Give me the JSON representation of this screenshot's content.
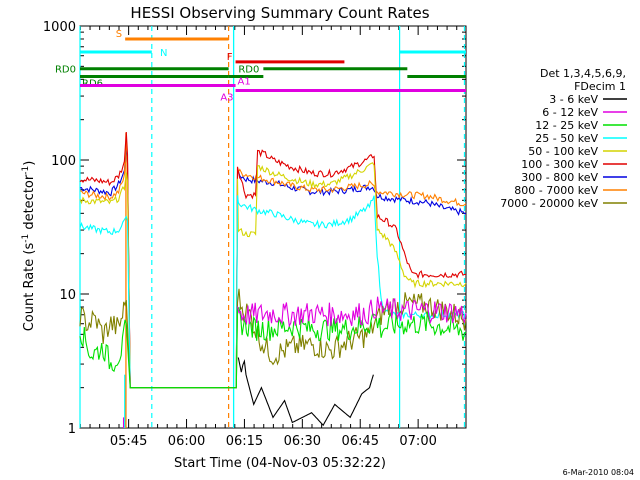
{
  "chart_data": {
    "type": "line",
    "title": "HESSI Observing Summary Count Rates",
    "xlabel": "Start Time (04-Nov-03 05:32:22)",
    "ylabel_main": "Count Rate (s",
    "ylabel_sup1": "-1",
    "ylabel_mid": " detector",
    "ylabel_sup2": "-1",
    "ylabel_end": ")",
    "x_unit": "minutes after 05:32:22",
    "xlim": [
      0,
      100
    ],
    "ylim": [
      1,
      1000
    ],
    "yscale": "log",
    "x_ticks": [
      {
        "label": "05:45",
        "x": 12.6
      },
      {
        "label": "06:00",
        "x": 27.6
      },
      {
        "label": "06:15",
        "x": 42.6
      },
      {
        "label": "06:30",
        "x": 57.6
      },
      {
        "label": "06:45",
        "x": 72.6
      },
      {
        "label": "07:00",
        "x": 87.6
      }
    ],
    "y_ticks": [
      {
        "label": "1",
        "y": 1
      },
      {
        "label": "10",
        "y": 10
      },
      {
        "label": "100",
        "y": 100
      },
      {
        "label": "1000",
        "y": 1000
      }
    ],
    "legend_header": [
      "Det 1,3,4,5,6,9,",
      "FDecim 1"
    ],
    "series": [
      {
        "name": "3 - 6 keV",
        "color": "#000000"
      },
      {
        "name": "6 - 12 keV",
        "color": "#e000e0"
      },
      {
        "name": "12 - 25 keV",
        "color": "#00e000"
      },
      {
        "name": "25 - 50 keV",
        "color": "#00ffff"
      },
      {
        "name": "50 - 100 keV",
        "color": "#d4d400"
      },
      {
        "name": "100 - 300 keV",
        "color": "#e00000"
      },
      {
        "name": "300 - 800 keV",
        "color": "#0000e0"
      },
      {
        "name": "800 - 7000 keV",
        "color": "#ff8000"
      },
      {
        "name": "7000 - 20000 keV",
        "color": "#808000"
      }
    ],
    "curves": [
      {
        "series": 6,
        "points": [
          [
            0,
            62
          ],
          [
            5,
            59
          ],
          [
            8,
            57
          ],
          [
            10,
            66
          ],
          [
            11.5,
            82
          ],
          [
            12,
            130
          ],
          [
            12.3,
            95
          ],
          [
            13,
            2
          ],
          [
            40.5,
            2
          ],
          [
            40.8,
            82
          ],
          [
            41,
            78
          ],
          [
            43,
            72
          ],
          [
            46,
            70
          ],
          [
            50,
            68
          ],
          [
            55,
            62
          ],
          [
            60,
            58
          ],
          [
            65,
            58
          ],
          [
            70,
            60
          ],
          [
            75,
            63
          ],
          [
            76.2,
            62
          ],
          [
            77,
            54
          ],
          [
            80,
            52
          ],
          [
            85,
            50
          ],
          [
            90,
            48
          ],
          [
            95,
            43
          ],
          [
            100,
            40
          ]
        ]
      },
      {
        "series": 7,
        "points": [
          [
            0,
            57
          ],
          [
            5,
            54
          ],
          [
            8,
            53
          ],
          [
            10,
            58
          ],
          [
            11.5,
            75
          ],
          [
            12,
            150
          ],
          [
            12.3,
            95
          ],
          [
            13,
            2
          ],
          [
            40.5,
            2
          ],
          [
            40.8,
            88
          ],
          [
            41,
            82
          ],
          [
            43,
            78
          ],
          [
            46,
            74
          ],
          [
            50,
            70
          ],
          [
            55,
            64
          ],
          [
            60,
            60
          ],
          [
            65,
            60
          ],
          [
            70,
            63
          ],
          [
            75,
            66
          ],
          [
            76.2,
            64
          ],
          [
            77,
            58
          ],
          [
            80,
            57
          ],
          [
            85,
            55
          ],
          [
            90,
            54
          ],
          [
            95,
            50
          ],
          [
            100,
            47
          ]
        ]
      },
      {
        "series": 5,
        "points": [
          [
            0,
            72
          ],
          [
            5,
            70
          ],
          [
            8,
            68
          ],
          [
            10,
            76
          ],
          [
            11.5,
            95
          ],
          [
            12,
            170
          ],
          [
            12.3,
            110
          ],
          [
            13,
            2
          ],
          [
            40.5,
            2
          ],
          [
            40.8,
            90
          ],
          [
            41,
            85
          ],
          [
            42.5,
            60
          ],
          [
            43,
            55
          ],
          [
            45.5,
            55
          ],
          [
            46,
            115
          ],
          [
            48,
            110
          ],
          [
            50,
            100
          ],
          [
            55,
            88
          ],
          [
            60,
            80
          ],
          [
            65,
            79
          ],
          [
            70,
            88
          ],
          [
            75,
            102
          ],
          [
            76.2,
            110
          ],
          [
            77,
            38
          ],
          [
            80,
            34
          ],
          [
            82,
            30
          ],
          [
            84,
            20
          ],
          [
            86,
            14
          ],
          [
            90,
            14
          ],
          [
            95,
            14
          ],
          [
            100,
            14
          ]
        ]
      },
      {
        "series": 4,
        "points": [
          [
            0,
            50
          ],
          [
            5,
            49
          ],
          [
            8,
            48
          ],
          [
            10,
            52
          ],
          [
            11.5,
            62
          ],
          [
            12,
            85
          ],
          [
            12.3,
            70
          ],
          [
            13,
            2
          ],
          [
            40.5,
            2
          ],
          [
            40.8,
            70
          ],
          [
            41,
            30
          ],
          [
            43,
            28
          ],
          [
            45.5,
            28
          ],
          [
            46,
            90
          ],
          [
            48,
            85
          ],
          [
            50,
            80
          ],
          [
            55,
            72
          ],
          [
            60,
            66
          ],
          [
            65,
            66
          ],
          [
            70,
            76
          ],
          [
            75,
            90
          ],
          [
            76.2,
            95
          ],
          [
            77,
            30
          ],
          [
            80,
            25
          ],
          [
            82,
            20
          ],
          [
            84,
            14
          ],
          [
            86,
            12
          ],
          [
            90,
            12
          ],
          [
            95,
            12
          ],
          [
            100,
            12
          ]
        ]
      },
      {
        "series": 3,
        "points": [
          [
            0,
            32
          ],
          [
            5,
            30
          ],
          [
            8,
            29
          ],
          [
            10,
            30
          ],
          [
            11.5,
            34
          ],
          [
            12,
            40
          ],
          [
            12.3,
            35
          ],
          [
            13,
            2
          ],
          [
            40.5,
            2
          ],
          [
            40.8,
            55
          ],
          [
            41,
            48
          ],
          [
            43,
            45
          ],
          [
            46,
            42
          ],
          [
            50,
            40
          ],
          [
            55,
            36
          ],
          [
            60,
            33
          ],
          [
            65,
            33
          ],
          [
            70,
            36
          ],
          [
            75,
            45
          ],
          [
            76.2,
            52
          ],
          [
            77,
            20
          ],
          [
            78,
            9
          ],
          [
            80,
            7
          ],
          [
            85,
            7
          ],
          [
            90,
            7
          ],
          [
            95,
            7
          ],
          [
            100,
            7
          ]
        ]
      },
      {
        "series": 8,
        "points": [
          [
            0,
            7
          ],
          [
            2,
            6
          ],
          [
            4,
            6.5
          ],
          [
            6,
            5
          ],
          [
            8,
            6
          ],
          [
            10,
            5.5
          ],
          [
            11,
            7
          ],
          [
            12,
            9
          ],
          [
            13,
            2
          ],
          [
            40.5,
            2
          ],
          [
            40.8,
            10
          ],
          [
            42,
            8
          ],
          [
            44,
            7
          ],
          [
            46,
            5
          ],
          [
            48,
            4
          ],
          [
            50,
            3.5
          ],
          [
            55,
            4
          ],
          [
            60,
            4.2
          ],
          [
            65,
            3.8
          ],
          [
            70,
            4.5
          ],
          [
            75,
            5
          ],
          [
            76.2,
            6
          ],
          [
            78,
            7
          ],
          [
            80,
            8
          ],
          [
            85,
            8.5
          ],
          [
            90,
            8.2
          ],
          [
            95,
            7.5
          ],
          [
            100,
            6.5
          ]
        ]
      },
      {
        "series": 2,
        "points": [
          [
            0,
            5.5
          ],
          [
            3,
            3.5
          ],
          [
            6,
            4
          ],
          [
            8,
            3
          ],
          [
            10,
            3.5
          ],
          [
            11,
            4
          ],
          [
            12,
            6
          ],
          [
            13,
            2
          ],
          [
            40.5,
            2
          ],
          [
            40.8,
            7
          ],
          [
            42,
            6
          ],
          [
            45,
            5.5
          ],
          [
            50,
            5.5
          ],
          [
            55,
            5.8
          ],
          [
            60,
            5.5
          ],
          [
            65,
            5.5
          ],
          [
            70,
            5.5
          ],
          [
            75,
            6
          ],
          [
            76.2,
            7
          ],
          [
            78,
            5.5
          ],
          [
            80,
            5.8
          ],
          [
            85,
            6
          ],
          [
            90,
            6
          ],
          [
            95,
            5.6
          ],
          [
            100,
            5.2
          ]
        ]
      },
      {
        "series": 1,
        "points": [
          [
            40.8,
            8
          ],
          [
            42,
            7
          ],
          [
            45,
            7
          ],
          [
            50,
            7.2
          ],
          [
            55,
            7
          ],
          [
            60,
            7.2
          ],
          [
            65,
            7
          ],
          [
            70,
            7.1
          ],
          [
            75,
            7.2
          ],
          [
            76.2,
            8
          ],
          [
            78,
            7.8
          ],
          [
            80,
            7.6
          ],
          [
            85,
            7.5
          ],
          [
            90,
            7.6
          ],
          [
            95,
            7.4
          ],
          [
            100,
            7.2
          ]
        ]
      },
      {
        "series": 0,
        "points": [
          [
            41,
            3
          ],
          [
            43,
            2.5
          ],
          [
            45,
            1.5
          ],
          [
            47,
            2
          ],
          [
            50,
            1.2
          ],
          [
            53,
            1.6
          ],
          [
            55,
            1.1
          ],
          [
            60,
            1.3
          ],
          [
            63,
            1.05
          ],
          [
            66,
            1.5
          ],
          [
            70,
            1.2
          ],
          [
            73,
            1.8
          ],
          [
            75,
            2
          ],
          [
            76,
            2.5
          ]
        ]
      }
    ],
    "spikes": [
      {
        "series": 1,
        "x": 11.3,
        "from": 1,
        "to": 1.2
      },
      {
        "series": 3,
        "x": 11.6,
        "from": 1,
        "to": 2.5
      },
      {
        "series": 7,
        "x": 11.9,
        "from": 1,
        "to": 160
      },
      {
        "series": 3,
        "x": 39.8,
        "from": 1,
        "to": 1000
      }
    ],
    "vlines": [
      {
        "x": 0,
        "color": "#00ffff",
        "dash": false
      },
      {
        "x": 18.6,
        "color": "#00ffff",
        "dash": true
      },
      {
        "x": 38.5,
        "color": "#ff8000",
        "dash": true
      },
      {
        "x": 82.8,
        "color": "#00ffff",
        "dash": false
      },
      {
        "x": 99.6,
        "color": "#00ffff",
        "dash": true
      }
    ],
    "state_bars": [
      {
        "label": "S",
        "color": "#ff8000",
        "x0": 11.7,
        "x1": 38.5,
        "y": 800,
        "label_side": "left"
      },
      {
        "label": "N",
        "color": "#00ffff",
        "x0": 0,
        "x1": 18.6,
        "y": 640,
        "label_side": "after_start"
      },
      {
        "label": "N",
        "color": "#00ffff",
        "x0": 82.8,
        "x1": 100,
        "y": 640,
        "label_side": "none"
      },
      {
        "label": "F",
        "color": "#e00000",
        "x0": 40.3,
        "x1": 68.5,
        "y": 540,
        "label_side": "left"
      },
      {
        "label": "RD0",
        "color": "#008000",
        "x0": 0,
        "x1": 38.5,
        "y": 480,
        "label_side": "left"
      },
      {
        "label": "RD0",
        "color": "#008000",
        "x0": 47.5,
        "x1": 84.8,
        "y": 480,
        "label_side": "none"
      },
      {
        "label": "RD6",
        "color": "#008000",
        "x0": 0,
        "x1": 38.5,
        "y": 420,
        "label_side": "after_start"
      },
      {
        "label": "RD6",
        "color": "#008000",
        "x0": 38.5,
        "x1": 47.5,
        "y": 420,
        "label_side": "none"
      },
      {
        "label": "RD6",
        "color": "#008000",
        "x0": 84.8,
        "x1": 100,
        "y": 420,
        "label_side": "none"
      },
      {
        "label": "A1",
        "color": "#e000e0",
        "x0": 0,
        "x1": 40.3,
        "y": 360,
        "label_side": "end_above"
      },
      {
        "label": "A3",
        "color": "#e000e0",
        "x0": 40.3,
        "x1": 100,
        "y": 330,
        "label_side": "start_below"
      }
    ]
  },
  "timestamp": "6-Mar-2010 08:04"
}
